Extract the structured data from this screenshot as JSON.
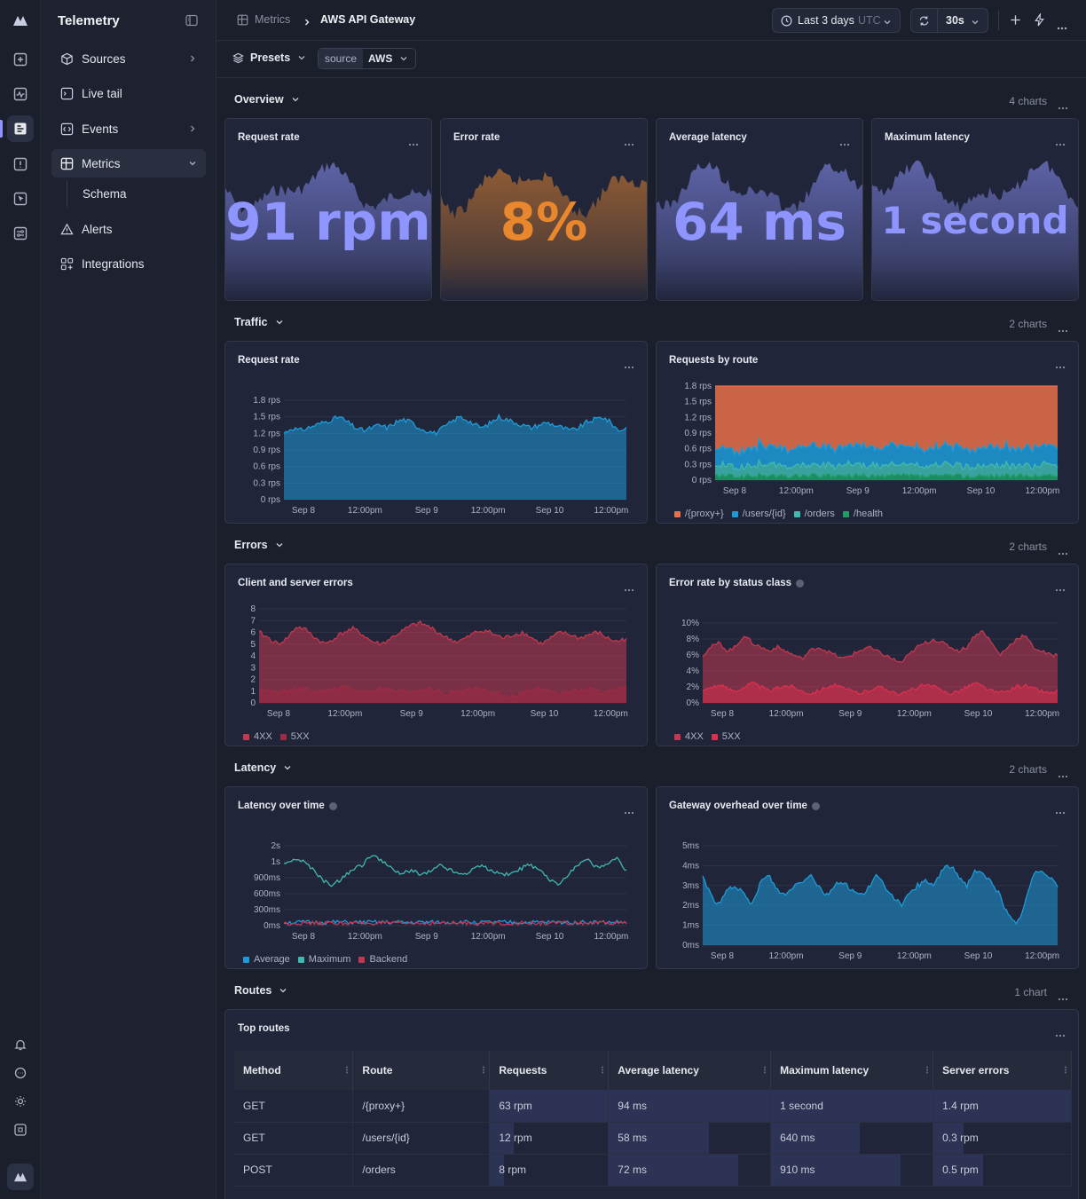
{
  "app": {
    "title": "Telemetry"
  },
  "sidebar": {
    "items": [
      {
        "label": "Sources",
        "icon": "cube-icon",
        "has_chevron": true
      },
      {
        "label": "Live tail",
        "icon": "terminal-icon",
        "has_chevron": false
      },
      {
        "label": "Events",
        "icon": "code-icon",
        "has_chevron": true
      },
      {
        "label": "Metrics",
        "icon": "grid-icon",
        "has_chevron": true,
        "active": true
      },
      {
        "label": "Alerts",
        "icon": "warning-icon",
        "has_chevron": false
      },
      {
        "label": "Integrations",
        "icon": "apps-icon",
        "has_chevron": false
      }
    ],
    "sub_items": [
      {
        "label": "Schema"
      }
    ]
  },
  "breadcrumb": {
    "root": "Metrics",
    "current": "AWS API Gateway"
  },
  "toolbar": {
    "time_range": "Last 3 days",
    "timezone": "UTC",
    "refresh_interval": "30s"
  },
  "filters": {
    "presets_label": "Presets",
    "source_key": "source",
    "source_value": "AWS"
  },
  "sections": {
    "overview": {
      "title": "Overview",
      "count": "4 charts"
    },
    "traffic": {
      "title": "Traffic",
      "count": "2 charts"
    },
    "errors": {
      "title": "Errors",
      "count": "2 charts"
    },
    "latency": {
      "title": "Latency",
      "count": "2 charts"
    },
    "routes": {
      "title": "Routes",
      "count": "1 chart"
    }
  },
  "stats": [
    {
      "title": "Request rate",
      "value": "91 rpm",
      "color": "#8f95ff"
    },
    {
      "title": "Error rate",
      "value": "8%",
      "color": "#e8872e"
    },
    {
      "title": "Average latency",
      "value": "64 ms",
      "color": "#8f95ff"
    },
    {
      "title": "Maximum latency",
      "value": "1 second",
      "color": "#8f95ff"
    }
  ],
  "chart_data": [
    {
      "id": "request-rate",
      "type": "area",
      "title": "Request rate",
      "x_ticks": [
        "Sep 8",
        "12:00pm",
        "Sep 9",
        "12:00pm",
        "Sep 10",
        "12:00pm"
      ],
      "y_ticks": [
        "1.8 rps",
        "1.5 rps",
        "1.2 rps",
        "0.9 rps",
        "0.6 rps",
        "0.3 rps",
        "0 rps"
      ],
      "ylim": [
        0,
        1.8
      ],
      "series": [
        {
          "values": [
            1.2,
            1.3,
            1.25,
            1.3,
            1.35,
            1.4,
            1.45,
            1.5,
            1.4,
            1.3,
            1.25,
            1.3,
            1.35,
            1.3,
            1.4,
            1.45,
            1.4,
            1.3,
            1.25,
            1.2,
            1.3,
            1.4,
            1.5,
            1.45,
            1.35,
            1.3,
            1.4,
            1.5,
            1.45,
            1.4,
            1.35,
            1.3,
            1.35,
            1.4,
            1.35,
            1.3,
            1.25,
            1.3,
            1.4,
            1.45,
            1.5,
            1.4,
            1.25,
            1.3
          ],
          "color": "#1d9bd9"
        }
      ]
    },
    {
      "id": "requests-by-route",
      "type": "area",
      "title": "Requests by route",
      "x_ticks": [
        "Sep 8",
        "12:00pm",
        "Sep 9",
        "12:00pm",
        "Sep 10",
        "12:00pm"
      ],
      "y_ticks": [
        "1.8 rps",
        "1.5 rps",
        "1.2 rps",
        "0.9 rps",
        "0.6 rps",
        "0.3 rps",
        "0 rps"
      ],
      "ylim": [
        0,
        1.8
      ],
      "legend": [
        "/{proxy+}",
        "/users/{id}",
        "/orders",
        "/health"
      ],
      "series": [
        {
          "name": "/{proxy+}",
          "color": "#e8704a",
          "values": [
            1.3,
            1.35,
            1.3,
            1.35,
            1.4,
            1.45,
            1.5,
            1.55,
            1.5,
            1.45,
            1.45,
            1.5,
            1.55,
            1.6,
            1.55,
            1.5,
            1.45,
            1.5,
            1.55,
            1.5,
            1.45,
            1.4,
            1.45,
            1.5,
            1.55,
            1.5,
            1.45,
            1.5,
            1.55,
            1.5
          ]
        },
        {
          "name": "/users/{id}",
          "color": "#1d9bd9",
          "values": [
            0.35,
            0.35,
            0.3,
            0.35,
            0.38,
            0.35,
            0.32,
            0.35,
            0.38,
            0.35,
            0.33,
            0.35,
            0.37,
            0.35,
            0.33,
            0.35,
            0.37,
            0.34,
            0.33,
            0.35,
            0.36,
            0.35,
            0.33,
            0.35,
            0.37,
            0.35,
            0.33,
            0.35,
            0.36,
            0.35
          ]
        },
        {
          "name": "/orders",
          "color": "#3fb8b0",
          "values": [
            0.2,
            0.2,
            0.18,
            0.2,
            0.22,
            0.2,
            0.19,
            0.2,
            0.21,
            0.2,
            0.19,
            0.2,
            0.21,
            0.2,
            0.19,
            0.2,
            0.21,
            0.2,
            0.19,
            0.2,
            0.21,
            0.2,
            0.19,
            0.2,
            0.21,
            0.2,
            0.19,
            0.2,
            0.21,
            0.2
          ]
        },
        {
          "name": "/health",
          "color": "#1f9e68",
          "values": [
            0.08,
            0.08,
            0.07,
            0.08,
            0.09,
            0.08,
            0.07,
            0.08,
            0.09,
            0.08,
            0.07,
            0.08,
            0.09,
            0.08,
            0.07,
            0.08,
            0.09,
            0.08,
            0.07,
            0.08,
            0.09,
            0.08,
            0.07,
            0.08,
            0.09,
            0.08,
            0.07,
            0.08,
            0.09,
            0.08
          ]
        }
      ]
    },
    {
      "id": "client-server-errors",
      "type": "area",
      "title": "Client and server errors",
      "x_ticks": [
        "Sep 8",
        "12:00pm",
        "Sep 9",
        "12:00pm",
        "Sep 10",
        "12:00pm"
      ],
      "y_ticks": [
        "8",
        "7",
        "6",
        "5",
        "4",
        "3",
        "2",
        "1",
        "0"
      ],
      "ylim": [
        0,
        8
      ],
      "legend": [
        "4XX",
        "5XX"
      ],
      "series": [
        {
          "name": "4XX",
          "color": "#c2384f",
          "values": [
            6,
            5.5,
            5,
            5.5,
            6.5,
            6.2,
            5.5,
            5,
            5.5,
            6,
            6.3,
            5.8,
            5.2,
            5,
            5.5,
            6,
            6.5,
            6.8,
            6.5,
            6,
            5.5,
            5.2,
            5.5,
            6,
            6.2,
            5.8,
            5.5,
            5.8,
            6,
            5.5,
            5,
            5.5,
            6,
            5.8,
            5.5,
            5.8,
            6,
            5.5,
            5.2,
            5.5
          ]
        },
        {
          "name": "5XX",
          "color": "#9e2a44",
          "values": [
            1.2,
            1,
            0.9,
            1,
            1.2,
            1.1,
            0.9,
            1,
            1.2,
            1.3,
            1.1,
            0.9,
            1,
            1.2,
            1.1,
            1,
            0.9,
            1.1,
            1.2,
            1,
            0.8,
            0.9,
            1.1,
            1.2,
            1,
            0.9,
            0.5,
            0.6,
            0.9,
            1.1,
            1.2,
            1,
            0.8,
            0.9,
            1.1,
            1.2,
            1,
            0.9,
            1.1,
            1.3
          ]
        }
      ]
    },
    {
      "id": "error-rate-status",
      "type": "area",
      "title": "Error rate by status class",
      "x_ticks": [
        "Sep 8",
        "12:00pm",
        "Sep 9",
        "12:00pm",
        "Sep 10",
        "12:00pm"
      ],
      "y_ticks": [
        "10%",
        "8%",
        "6%",
        "4%",
        "2%",
        "0%"
      ],
      "ylim": [
        0,
        10
      ],
      "legend": [
        "4XX",
        "5XX"
      ],
      "series": [
        {
          "name": "4XX",
          "color": "#c2384f",
          "values": [
            6,
            7,
            7.5,
            6.5,
            7,
            8.5,
            7.5,
            7,
            6.5,
            7,
            6.5,
            6,
            5.5,
            6.5,
            7,
            6.5,
            6,
            5.5,
            6,
            6.5,
            7,
            6.5,
            6,
            5.5,
            5,
            6,
            7,
            7.5,
            8,
            7.5,
            7,
            6.5,
            7,
            8.5,
            9,
            7.5,
            6,
            7,
            8,
            8.5,
            7,
            6.5,
            6,
            6
          ]
        },
        {
          "name": "5XX",
          "color": "#d9304f",
          "values": [
            1.5,
            2,
            2.2,
            1.8,
            1.5,
            2,
            2.5,
            2,
            1.5,
            1.8,
            2.2,
            2,
            1.5,
            1.2,
            1.5,
            2,
            2.2,
            1.8,
            1.5,
            1.2,
            1.5,
            2,
            1.8,
            1.5,
            1,
            1.5,
            2,
            2.2,
            2,
            1.5,
            1.2,
            1.5,
            2,
            2.5,
            2,
            1.5,
            1.2,
            1.5,
            2,
            2.2,
            1.8,
            1.5,
            1.2,
            1.5
          ]
        }
      ]
    },
    {
      "id": "latency-over-time",
      "type": "line",
      "title": "Latency over time",
      "x_ticks": [
        "Sep 8",
        "12:00pm",
        "Sep 9",
        "12:00pm",
        "Sep 10",
        "12:00pm"
      ],
      "y_ticks": [
        "2s",
        "1s",
        "900ms",
        "600ms",
        "300ms",
        "0ms"
      ],
      "legend": [
        "Average",
        "Maximum",
        "Backend"
      ],
      "series": [
        {
          "name": "Average",
          "color": "#1d9bd9",
          "values": [
            0.2,
            0.21,
            0.2,
            0.22,
            0.2,
            0.21,
            0.2,
            0.2,
            0.21,
            0.2,
            0.22,
            0.2,
            0.21,
            0.2,
            0.2,
            0.21,
            0.2,
            0.22,
            0.2,
            0.21
          ]
        },
        {
          "name": "Maximum",
          "color": "#3fb8b0",
          "values": [
            3.8,
            4.2,
            4,
            3.5,
            2.8,
            2.5,
            3,
            3.5,
            3.8,
            4.5,
            4,
            3.6,
            3.2,
            3.5,
            3.2,
            3.4,
            3.8,
            3.5,
            3.2,
            3.4,
            3.8,
            3.5,
            3.3,
            3.2,
            3.5,
            3.8,
            3.5,
            3,
            2.5,
            3.2,
            3.8,
            4.2,
            3.6,
            3.8,
            4.2,
            3.4
          ]
        },
        {
          "name": "Backend",
          "color": "#c2384f",
          "values": [
            0.15,
            0.16,
            0.15,
            0.16,
            0.15,
            0.16,
            0.15,
            0.15,
            0.16,
            0.15,
            0.16,
            0.15,
            0.16,
            0.15,
            0.15,
            0.16,
            0.15,
            0.16,
            0.15,
            0.16
          ]
        }
      ]
    },
    {
      "id": "gateway-overhead",
      "type": "area",
      "title": "Gateway overhead over time",
      "x_ticks": [
        "Sep 8",
        "12:00pm",
        "Sep 9",
        "12:00pm",
        "Sep 10",
        "12:00pm"
      ],
      "y_ticks": [
        "5ms",
        "4ms",
        "3ms",
        "2ms",
        "1ms",
        "0ms"
      ],
      "ylim": [
        0,
        5
      ],
      "series": [
        {
          "color": "#1d9bd9",
          "values": [
            3.5,
            2.5,
            2,
            2.8,
            3,
            2.5,
            2,
            3.2,
            3.5,
            2.8,
            2.5,
            3,
            3.2,
            3.6,
            3,
            2.5,
            3,
            3.2,
            2.8,
            2.5,
            2.8,
            3.5,
            3,
            2.5,
            2,
            2.5,
            3,
            3.2,
            3,
            3.8,
            4,
            3.5,
            3,
            3.8,
            3.5,
            3.2,
            2.5,
            1.5,
            1,
            2,
            3.5,
            3.8,
            3.5,
            3
          ]
        }
      ]
    }
  ],
  "routes_table": {
    "title": "Top routes",
    "columns": [
      "Method",
      "Route",
      "Requests",
      "Average latency",
      "Maximum latency",
      "Server errors"
    ],
    "rows": [
      {
        "method": "GET",
        "route": "/{proxy+}",
        "requests": "63 rpm",
        "avg_latency": "94 ms",
        "max_latency": "1 second",
        "server_errors": "1.4 rpm",
        "bars": [
          1.0,
          1.0,
          1.0,
          1.0
        ]
      },
      {
        "method": "GET",
        "route": "/users/{id}",
        "requests": "12 rpm",
        "avg_latency": "58 ms",
        "max_latency": "640 ms",
        "server_errors": "0.3 rpm",
        "bars": [
          0.2,
          0.62,
          0.55,
          0.22
        ]
      },
      {
        "method": "POST",
        "route": "/orders",
        "requests": "8 rpm",
        "avg_latency": "72 ms",
        "max_latency": "910 ms",
        "server_errors": "0.5 rpm",
        "bars": [
          0.12,
          0.8,
          0.8,
          0.36
        ]
      }
    ]
  }
}
